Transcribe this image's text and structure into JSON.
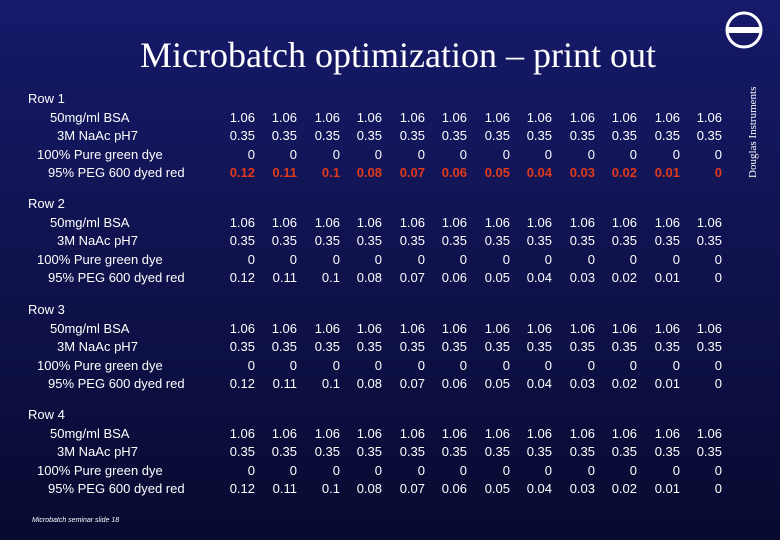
{
  "title": "Microbatch optimization – print out",
  "brand": "Douglas Instruments",
  "logo_icon": "douglas-instruments-logo-icon",
  "highlight_color": "#e03a1a",
  "rows": [
    {
      "label": "Row   1",
      "components": [
        "50mg/ml BSA",
        "3M NaAc pH7",
        "100% Pure green dye",
        "95% PEG 600 dyed red"
      ],
      "bsa": [
        "1.06",
        "1.06",
        "1.06",
        "1.06",
        "1.06",
        "1.06",
        "1.06",
        "1.06",
        "1.06",
        "1.06",
        "1.06",
        "1.06"
      ],
      "naac": [
        "0.35",
        "0.35",
        "0.35",
        "0.35",
        "0.35",
        "0.35",
        "0.35",
        "0.35",
        "0.35",
        "0.35",
        "0.35",
        "0.35"
      ],
      "dye": [
        "0",
        "0",
        "0",
        "0",
        "0",
        "0",
        "0",
        "0",
        "0",
        "0",
        "0",
        "0"
      ],
      "peg": [
        "0.12",
        "0.11",
        "0.1",
        "0.08",
        "0.07",
        "0.06",
        "0.05",
        "0.04",
        "0.03",
        "0.02",
        "0.01",
        "0"
      ],
      "peg_highlighted": true
    },
    {
      "label": "Row   2",
      "components": [
        "50mg/ml BSA",
        "3M NaAc pH7",
        "100% Pure green dye",
        "95% PEG 600 dyed red"
      ],
      "bsa": [
        "1.06",
        "1.06",
        "1.06",
        "1.06",
        "1.06",
        "1.06",
        "1.06",
        "1.06",
        "1.06",
        "1.06",
        "1.06",
        "1.06"
      ],
      "naac": [
        "0.35",
        "0.35",
        "0.35",
        "0.35",
        "0.35",
        "0.35",
        "0.35",
        "0.35",
        "0.35",
        "0.35",
        "0.35",
        "0.35"
      ],
      "dye": [
        "0",
        "0",
        "0",
        "0",
        "0",
        "0",
        "0",
        "0",
        "0",
        "0",
        "0",
        "0"
      ],
      "peg": [
        "0.12",
        "0.11",
        "0.1",
        "0.08",
        "0.07",
        "0.06",
        "0.05",
        "0.04",
        "0.03",
        "0.02",
        "0.01",
        "0"
      ],
      "peg_highlighted": false
    },
    {
      "label": "Row   3",
      "components": [
        "50mg/ml BSA",
        "3M NaAc pH7",
        "100% Pure green dye",
        "95% PEG 600 dyed red"
      ],
      "bsa": [
        "1.06",
        "1.06",
        "1.06",
        "1.06",
        "1.06",
        "1.06",
        "1.06",
        "1.06",
        "1.06",
        "1.06",
        "1.06",
        "1.06"
      ],
      "naac": [
        "0.35",
        "0.35",
        "0.35",
        "0.35",
        "0.35",
        "0.35",
        "0.35",
        "0.35",
        "0.35",
        "0.35",
        "0.35",
        "0.35"
      ],
      "dye": [
        "0",
        "0",
        "0",
        "0",
        "0",
        "0",
        "0",
        "0",
        "0",
        "0",
        "0",
        "0"
      ],
      "peg": [
        "0.12",
        "0.11",
        "0.1",
        "0.08",
        "0.07",
        "0.06",
        "0.05",
        "0.04",
        "0.03",
        "0.02",
        "0.01",
        "0"
      ],
      "peg_highlighted": false
    },
    {
      "label": "Row   4",
      "components": [
        "50mg/ml BSA",
        "3M NaAc pH7",
        "100% Pure green dye",
        "95% PEG 600 dyed red"
      ],
      "bsa": [
        "1.06",
        "1.06",
        "1.06",
        "1.06",
        "1.06",
        "1.06",
        "1.06",
        "1.06",
        "1.06",
        "1.06",
        "1.06",
        "1.06"
      ],
      "naac": [
        "0.35",
        "0.35",
        "0.35",
        "0.35",
        "0.35",
        "0.35",
        "0.35",
        "0.35",
        "0.35",
        "0.35",
        "0.35",
        "0.35"
      ],
      "dye": [
        "0",
        "0",
        "0",
        "0",
        "0",
        "0",
        "0",
        "0",
        "0",
        "0",
        "0",
        "0"
      ],
      "peg": [
        "0.12",
        "0.11",
        "0.1",
        "0.08",
        "0.07",
        "0.06",
        "0.05",
        "0.04",
        "0.03",
        "0.02",
        "0.01",
        "0"
      ],
      "peg_highlighted": false
    }
  ],
  "footer": "Microbatch seminar  slide 18"
}
